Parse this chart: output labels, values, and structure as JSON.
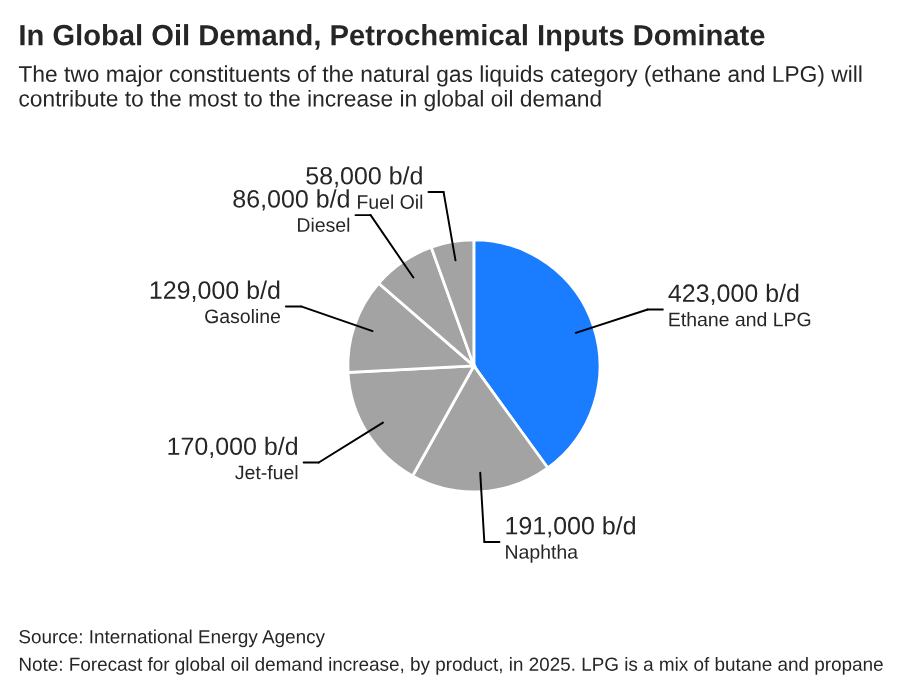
{
  "chart_data": {
    "type": "pie",
    "title": "In Global Oil Demand, Petrochemical Inputs Dominate",
    "subtitle": "The two major constituents of the natural gas liquids category (ethane and LPG) will contribute to the most to the increase in global oil demand",
    "categories": [
      "Ethane and LPG",
      "Naphtha",
      "Jet-fuel",
      "Gasoline",
      "Diesel",
      "Fuel Oil"
    ],
    "values": [
      423000,
      191000,
      170000,
      129000,
      86000,
      58000
    ],
    "value_labels": [
      "423,000 b/d",
      "191,000 b/d",
      "170,000 b/d",
      "129,000 b/d",
      "86,000 b/d",
      "58,000 b/d"
    ],
    "colors": [
      "#1a7cff",
      "#a3a3a3",
      "#a3a3a3",
      "#a3a3a3",
      "#a3a3a3",
      "#a3a3a3"
    ],
    "legend": false,
    "annotations": [
      "Source: International Energy Agency",
      "Note: Forecast for global oil demand increase, by product, in 2025. LPG is a mix of butane and propane"
    ]
  }
}
